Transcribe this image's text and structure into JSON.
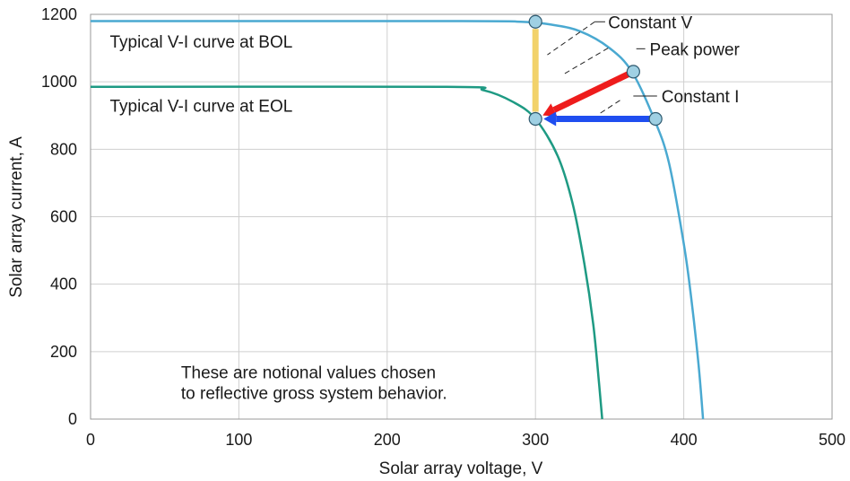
{
  "chart_data": {
    "type": "line",
    "title": "",
    "xlabel": "Solar array voltage, V",
    "ylabel": "Solar array current, A",
    "xlim": [
      0,
      500
    ],
    "ylim": [
      0,
      1200
    ],
    "xticks": [
      0,
      100,
      200,
      300,
      400,
      500
    ],
    "yticks": [
      0,
      200,
      400,
      600,
      800,
      1000,
      1200
    ],
    "grid": true,
    "series": [
      {
        "name": "Typical V-I curve at BOL",
        "color": "#4aa9d1",
        "x": [
          0,
          250,
          290,
          310,
          330,
          350,
          365,
          380,
          390,
          400,
          405,
          410,
          413
        ],
        "y": [
          1180,
          1180,
          1178,
          1170,
          1150,
          1100,
          1030,
          890,
          760,
          520,
          360,
          160,
          0
        ]
      },
      {
        "name": "Typical V-I curve at EOL",
        "color": "#1e9a83",
        "x": [
          0,
          240,
          265,
          285,
          300,
          315,
          325,
          333,
          339,
          343,
          345
        ],
        "y": [
          985,
          985,
          975,
          940,
          890,
          780,
          640,
          460,
          280,
          100,
          0
        ]
      }
    ],
    "markers": [
      {
        "x": 300,
        "y": 1178
      },
      {
        "x": 366,
        "y": 1030
      },
      {
        "x": 381,
        "y": 890
      },
      {
        "x": 300,
        "y": 890
      }
    ],
    "arrows": [
      {
        "label": "Constant V",
        "color": "#f2d26a",
        "from": [
          300,
          1178
        ],
        "to": [
          300,
          890
        ]
      },
      {
        "label": "Peak power",
        "color": "#ee1c1c",
        "from": [
          366,
          1030
        ],
        "to": [
          300,
          890
        ]
      },
      {
        "label": "Constant I",
        "color": "#1f4ef0",
        "from": [
          381,
          890
        ],
        "to": [
          300,
          890
        ]
      }
    ],
    "annotations": [
      {
        "text": "Constant V",
        "x": 349,
        "y": 1178
      },
      {
        "text": "Peak power",
        "x": 377,
        "y": 1098
      },
      {
        "text": "Constant I",
        "x": 385,
        "y": 958
      },
      {
        "text": "Typical V-I curve at BOL",
        "x": 13,
        "y": 1120
      },
      {
        "text": "Typical V-I curve at EOL",
        "x": 13,
        "y": 930
      },
      {
        "text": "These are notional values chosen",
        "x": 61,
        "y": 140
      },
      {
        "text": "to reflective gross system behavior.",
        "x": 61,
        "y": 78
      }
    ]
  }
}
